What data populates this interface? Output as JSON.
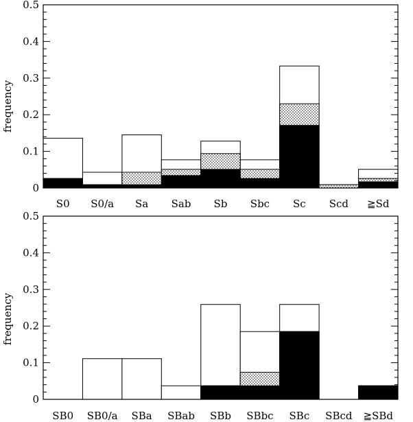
{
  "chart_data": [
    {
      "type": "bar",
      "ylabel": "frequency",
      "ylim": [
        0,
        0.5
      ],
      "yticks": [
        "0",
        "0.1",
        "0.2",
        "0.3",
        "0.4",
        "0.5"
      ],
      "categories": [
        "S0",
        "S0/a",
        "Sa",
        "Sab",
        "Sb",
        "Sbc",
        "Sc",
        "Scd",
        "≧Sd"
      ],
      "series": [
        {
          "fill": "outline",
          "values": [
            0.136,
            0.043,
            0.145,
            0.077,
            0.128,
            0.077,
            0.333,
            0.009,
            0.051
          ]
        },
        {
          "fill": "dotted",
          "values": [
            0.026,
            0.009,
            0.043,
            0.051,
            0.094,
            0.051,
            0.23,
            0.009,
            0.026
          ]
        },
        {
          "fill": "solid",
          "values": [
            0.026,
            0.009,
            0.009,
            0.034,
            0.051,
            0.026,
            0.171,
            0.0,
            0.017
          ]
        }
      ]
    },
    {
      "type": "bar",
      "ylabel": "frequency",
      "ylim": [
        0,
        0.5
      ],
      "yticks": [
        "0",
        "0.1",
        "0.2",
        "0.3",
        "0.4",
        "0.5"
      ],
      "categories": [
        "SB0",
        "SB0/a",
        "SBa",
        "SBab",
        "SBb",
        "SBbc",
        "SBc",
        "SBcd",
        "≧SBd"
      ],
      "series": [
        {
          "fill": "outline",
          "values": [
            0.0,
            0.111,
            0.111,
            0.037,
            0.259,
            0.185,
            0.259,
            0.0,
            0.037
          ]
        },
        {
          "fill": "dotted",
          "values": [
            0.0,
            0.0,
            0.0,
            0.0,
            0.037,
            0.074,
            0.185,
            0.0,
            0.037
          ]
        },
        {
          "fill": "solid",
          "values": [
            0.0,
            0.0,
            0.0,
            0.0,
            0.037,
            0.037,
            0.185,
            0.0,
            0.037
          ]
        }
      ]
    }
  ],
  "colors": {
    "outline": "#000000",
    "solid": "#000000",
    "dots": "#000000",
    "background": "#ffffff"
  }
}
